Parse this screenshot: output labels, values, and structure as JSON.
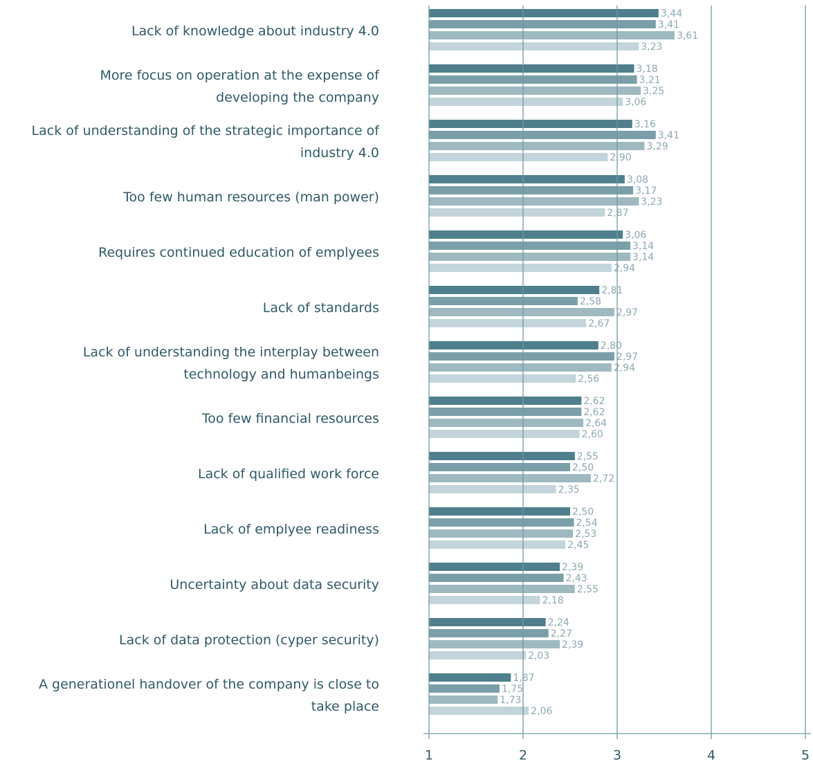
{
  "chart_data": {
    "type": "bar",
    "orientation": "horizontal",
    "categories": [
      "Lack of knowledge about industry 4.0",
      "More focus on operation at the expense of\ndeveloping the company",
      "Lack of understanding of the strategic importance of\nindustry 4.0",
      "Too few human resources (man power)",
      "Requires continued education of emplyees",
      "Lack of standards",
      "Lack of understanding the interplay between\ntechnology and humanbeings",
      "Too few financial resources",
      "Lack of qualified work force",
      "Lack of emplyee readiness",
      "Uncertainty about data security",
      "Lack of data protection (cyper security)",
      "A generationel handover of the company is close to\ntake  place"
    ],
    "series": [
      {
        "color": "#4f7f8c",
        "values": [
          3.44,
          3.18,
          3.16,
          3.08,
          3.06,
          2.81,
          2.8,
          2.62,
          2.55,
          2.5,
          2.39,
          2.24,
          1.87
        ],
        "value_labels": [
          "3,44",
          "3,18",
          "3,16",
          "3,08",
          "3,06",
          "2,81",
          "2,80",
          "2,62",
          "2,55",
          "2,50",
          "2,39",
          "2,24",
          "1,87"
        ]
      },
      {
        "color": "#7a9fa8",
        "values": [
          3.41,
          3.21,
          3.41,
          3.17,
          3.14,
          2.58,
          2.97,
          2.62,
          2.5,
          2.54,
          2.43,
          2.27,
          1.75
        ],
        "value_labels": [
          "3,41",
          "3,21",
          "3,41",
          "3,17",
          "3,14",
          "2,58",
          "2,97",
          "2,62",
          "2,50",
          "2,54",
          "2,43",
          "2,27",
          "1,75"
        ]
      },
      {
        "color": "#9fb9c0",
        "values": [
          3.61,
          3.25,
          3.29,
          3.23,
          3.14,
          2.97,
          2.94,
          2.64,
          2.72,
          2.53,
          2.55,
          2.39,
          1.73
        ],
        "value_labels": [
          "3,61",
          "3,25",
          "3,29",
          "3,23",
          "3,14",
          "2,97",
          "2,94",
          "2,64",
          "2,72",
          "2,53",
          "2,55",
          "2,39",
          "1,73"
        ]
      },
      {
        "color": "#c3d5da",
        "values": [
          3.23,
          3.06,
          2.9,
          2.87,
          2.94,
          2.67,
          2.56,
          2.6,
          2.35,
          2.45,
          2.18,
          2.03,
          2.06
        ],
        "value_labels": [
          "3,23",
          "3,06",
          "2,90",
          "2,87",
          "2,94",
          "2,67",
          "2,56",
          "2,60",
          "2,35",
          "2,45",
          "2,18",
          "2,03",
          "2,06"
        ]
      }
    ],
    "xlim": [
      1,
      5
    ],
    "xticks": [
      1,
      2,
      3,
      4,
      5
    ],
    "grid": true
  }
}
